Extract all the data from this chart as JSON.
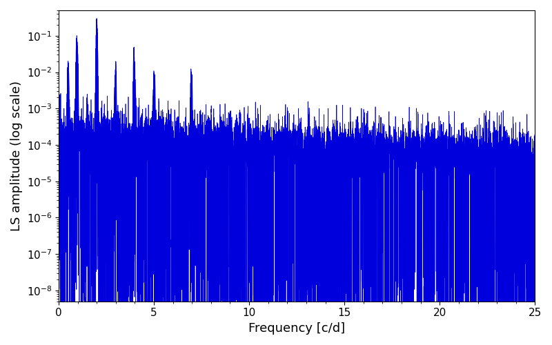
{
  "xlabel": "Frequency [c/d]",
  "ylabel": "LS amplitude (log scale)",
  "line_color": "#0000dd",
  "line_width": 0.5,
  "xlim": [
    0,
    25
  ],
  "ylim": [
    5e-09,
    0.5
  ],
  "freq_max": 25.0,
  "n_points": 8000,
  "seed": 12345,
  "bg_color": "#ffffff",
  "tick_label_size": 11,
  "axis_label_size": 13
}
